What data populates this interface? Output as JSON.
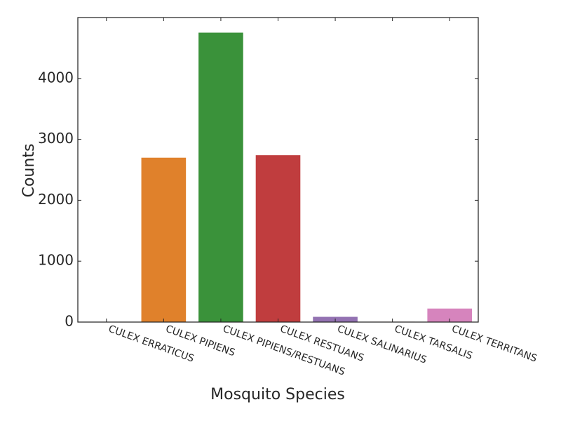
{
  "chart_data": {
    "type": "bar",
    "categories": [
      "CULEX ERRATICUS",
      "CULEX PIPIENS",
      "CULEX PIPIENS/RESTUANS",
      "CULEX RESTUANS",
      "CULEX SALINARIUS",
      "CULEX TARSALIS",
      "CULEX TERRITANS"
    ],
    "values": [
      1,
      2699,
      4752,
      2740,
      86,
      6,
      222
    ],
    "colors": [
      "#1f77b4",
      "#e0812b",
      "#3a923a",
      "#c03d3e",
      "#9372b2",
      "#845b53",
      "#d684bd"
    ],
    "xlabel": "Mosquito Species",
    "ylabel": "Counts",
    "ylim": [
      0,
      5000
    ],
    "yticks": [
      0,
      1000,
      2000,
      3000,
      4000
    ],
    "grid": false,
    "legend": "none"
  }
}
